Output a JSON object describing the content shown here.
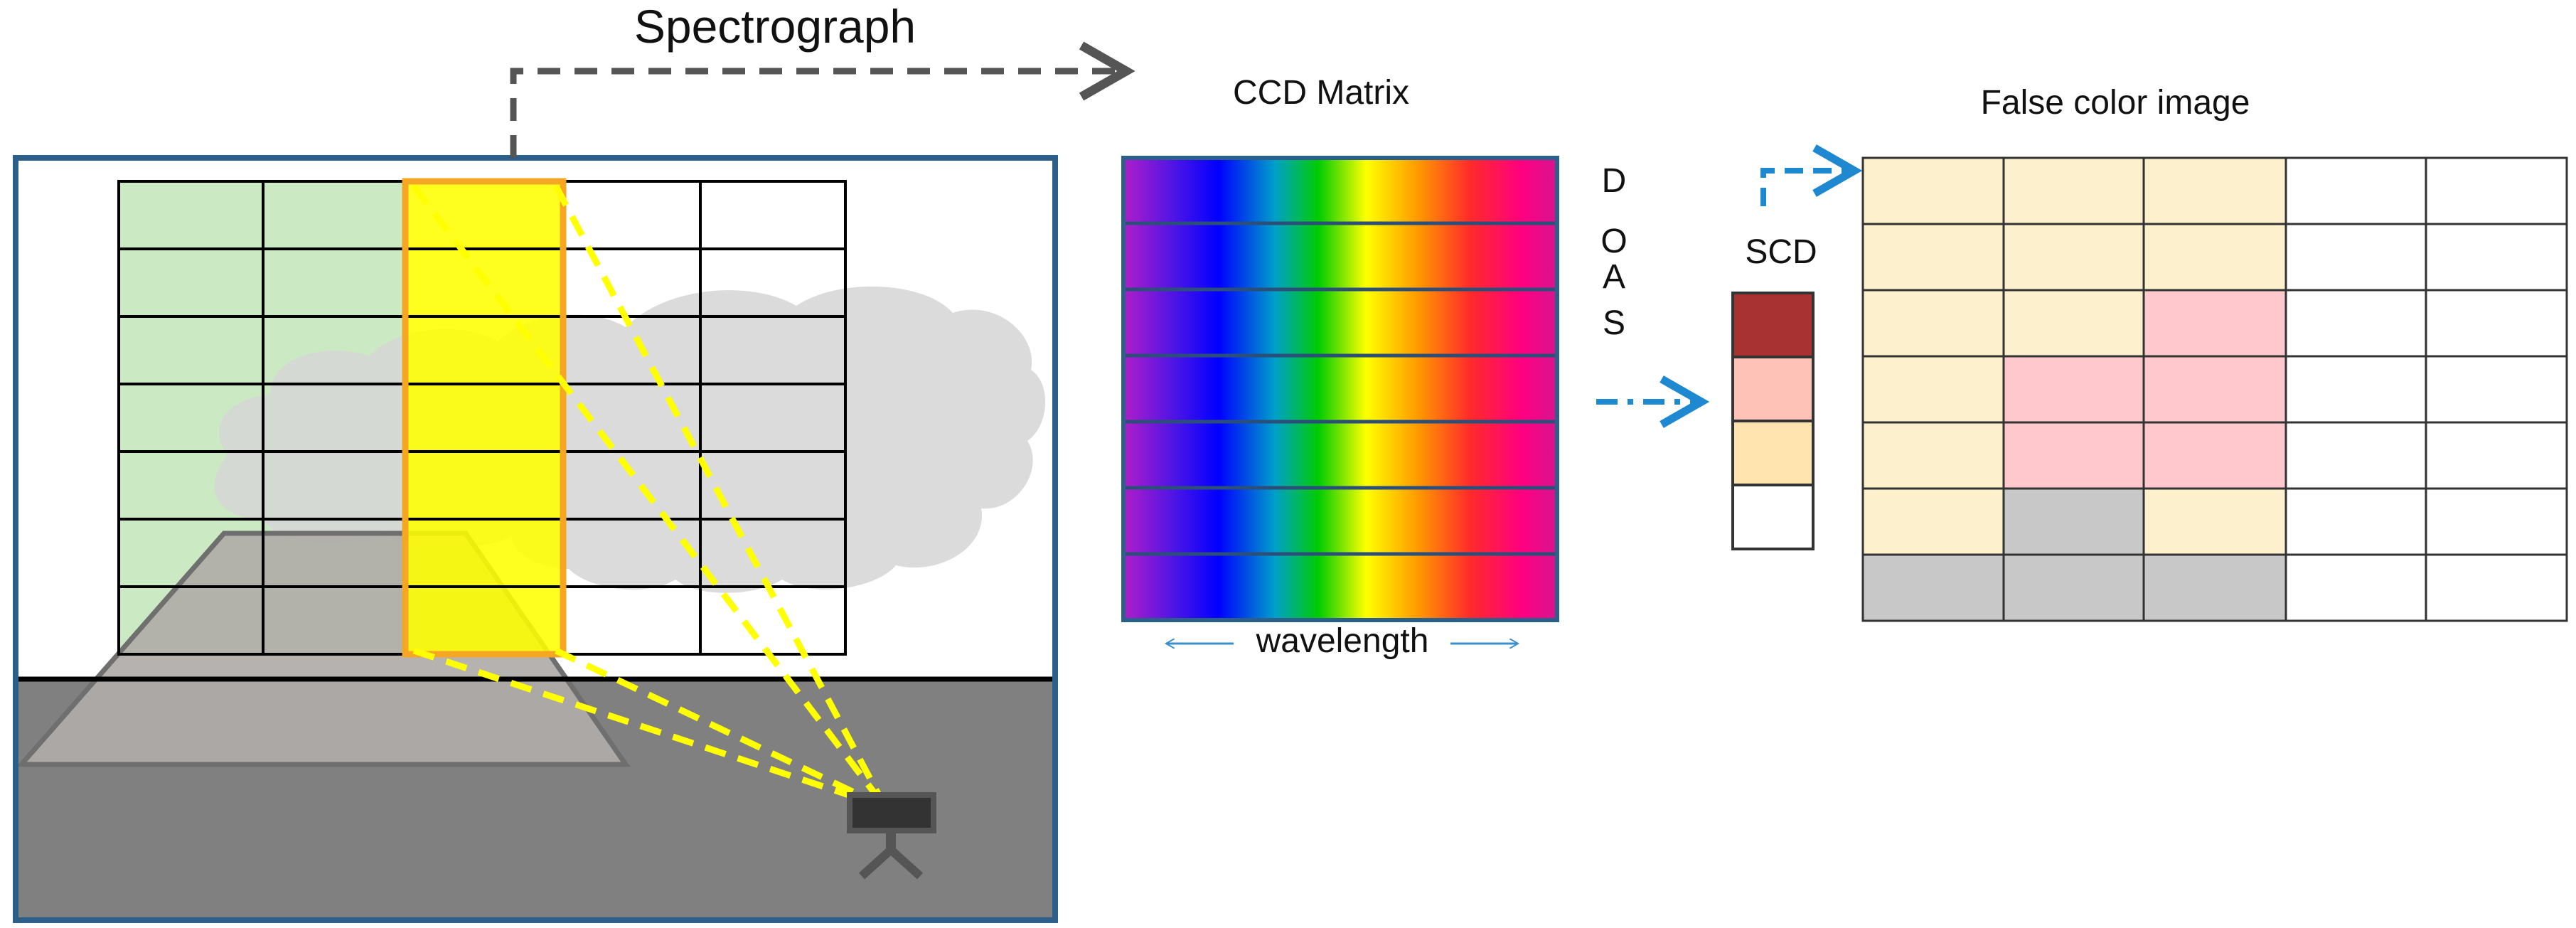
{
  "labels": {
    "spectrograph": "Spectrograph",
    "ccd_matrix": "CCD Matrix",
    "wavelength": "wavelength",
    "doas_letters": [
      "D",
      "O",
      "A",
      "S"
    ],
    "scd": "SCD",
    "false_color_image": "False color image"
  },
  "colors": {
    "scene_border": "#2c5f8a",
    "ground": "#808080",
    "mountain": "#b0aba8",
    "cloud": "#d6d6d6",
    "green_cells": "#cbe9c2",
    "yellow_column": "#ffff00",
    "column_outline": "#f5a623",
    "sight_lines": "#ffff00",
    "arrow_gray": "#555555",
    "arrow_blue": "#1e88d0",
    "scd_dark_red": "#a83232",
    "scd_salmon": "#ffc2b6",
    "scd_peach": "#ffe4b0",
    "scd_white": "#ffffff",
    "fc_cream": "#fdf0cc",
    "fc_pink": "#ffc8cc",
    "fc_gray": "#c8c8c8",
    "fc_white": "#ffffff"
  },
  "scd_scale": [
    "dark-red",
    "salmon",
    "peach",
    "white"
  ],
  "false_color_grid": [
    [
      "cream",
      "cream",
      "cream",
      "white",
      "white"
    ],
    [
      "cream",
      "cream",
      "cream",
      "white",
      "white"
    ],
    [
      "cream",
      "cream",
      "pink",
      "white",
      "white"
    ],
    [
      "cream",
      "pink",
      "pink",
      "white",
      "white"
    ],
    [
      "cream",
      "pink",
      "pink",
      "white",
      "white"
    ],
    [
      "cream",
      "gray",
      "cream",
      "white",
      "white"
    ],
    [
      "gray",
      "gray",
      "gray",
      "white",
      "white"
    ]
  ],
  "spectrum_colors": [
    "#b01ec8",
    "#0000ff",
    "#00cc00",
    "#ffff00",
    "#ff8800",
    "#ff2a2a",
    "#ff0080",
    "#e0158a"
  ],
  "icons": {
    "camera": "camera-icon",
    "spectrograph_arrow": "dashed-arrow-right-icon",
    "doas_arrow": "dash-dot-arrow-right-icon",
    "scd_arrow": "dashed-elbow-arrow-icon",
    "wavelength_arrow": "double-headed-arrow-icon"
  }
}
